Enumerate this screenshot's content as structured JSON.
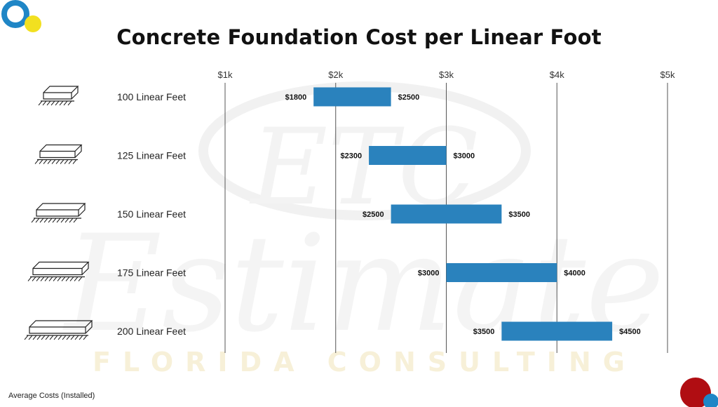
{
  "title": "Concrete Foundation Cost per Linear Foot",
  "footnote": "Average Costs (Installed)",
  "watermark": {
    "script_text": "Estimate",
    "monogram": "ETC",
    "caption": "FLORIDA CONSULTING"
  },
  "colors": {
    "bar": "#2a82bd",
    "gridline": "#555555",
    "logo_blue": "#1f86c6",
    "logo_yellow": "#f2e020",
    "logo_red": "#b00d12"
  },
  "icons": [
    "foundation-slab-icon"
  ],
  "chart_data": {
    "type": "bar",
    "orientation": "horizontal-range",
    "title": "Concrete Foundation Cost per Linear Foot",
    "xlabel": "",
    "ylabel": "",
    "xlim": [
      1000,
      5000
    ],
    "ticks": [
      {
        "value": 1000,
        "label": "$1k"
      },
      {
        "value": 2000,
        "label": "$2k"
      },
      {
        "value": 3000,
        "label": "$3k"
      },
      {
        "value": 4000,
        "label": "$4k"
      },
      {
        "value": 5000,
        "label": "$5k"
      }
    ],
    "grid": true,
    "rows": [
      {
        "category": "100 Linear Feet",
        "low": 1800,
        "high": 2500,
        "low_label": "$1800",
        "high_label": "$2500"
      },
      {
        "category": "125 Linear Feet",
        "low": 2300,
        "high": 3000,
        "low_label": "$2300",
        "high_label": "$3000"
      },
      {
        "category": "150 Linear Feet",
        "low": 2500,
        "high": 3500,
        "low_label": "$2500",
        "high_label": "$3500"
      },
      {
        "category": "175 Linear Feet",
        "low": 3000,
        "high": 4000,
        "low_label": "$3000",
        "high_label": "$4000"
      },
      {
        "category": "200 Linear Feet",
        "low": 3500,
        "high": 4500,
        "low_label": "$3500",
        "high_label": "$4500"
      }
    ]
  }
}
